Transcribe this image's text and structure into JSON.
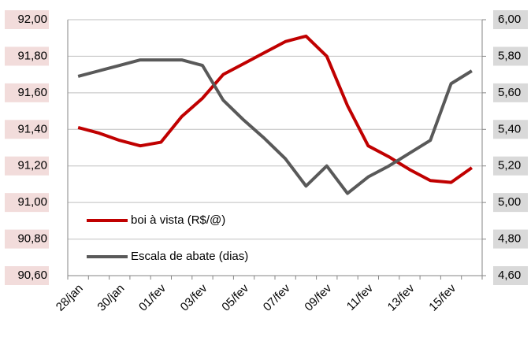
{
  "chart_data": {
    "type": "line",
    "categories": [
      "28/jan",
      null,
      "30/jan",
      null,
      "01/fev",
      null,
      "03/fev",
      null,
      "05/fev",
      null,
      "07/fev",
      null,
      "09/fev",
      null,
      "11/fev",
      null,
      "13/fev",
      null,
      "15/fev",
      null
    ],
    "series": [
      {
        "name": "boi à vista (R$/@)",
        "color": "#c00000",
        "values": [
          91.41,
          91.38,
          91.34,
          91.31,
          91.33,
          91.47,
          91.57,
          91.7,
          91.76,
          91.82,
          91.88,
          91.91,
          91.8,
          91.53,
          91.31,
          91.25,
          91.18,
          91.12,
          91.11,
          91.19
        ]
      },
      {
        "name": "Escala de abate (dias)",
        "color": "#595959",
        "axis": "y2",
        "values": [
          5.69,
          5.72,
          5.75,
          5.78,
          5.78,
          5.78,
          5.75,
          5.56,
          5.45,
          5.35,
          5.24,
          5.09,
          5.2,
          5.05,
          5.14,
          5.2,
          5.27,
          5.34,
          5.65,
          5.72
        ]
      }
    ],
    "ylim": [
      90.6,
      92.0
    ],
    "yticks": [
      {
        "value": 90.6,
        "label": "90,60"
      },
      {
        "value": 90.8,
        "label": "90,80"
      },
      {
        "value": 91.0,
        "label": "91,00"
      },
      {
        "value": 91.2,
        "label": "91,20"
      },
      {
        "value": 91.4,
        "label": "91,40"
      },
      {
        "value": 91.6,
        "label": "91,60"
      },
      {
        "value": 91.8,
        "label": "91,80"
      },
      {
        "value": 92.0,
        "label": "92,00"
      }
    ],
    "y2lim": [
      4.6,
      6.0
    ],
    "y2ticks": [
      {
        "value": 4.6,
        "label": "4,60"
      },
      {
        "value": 4.8,
        "label": "4,80"
      },
      {
        "value": 5.0,
        "label": "5,00"
      },
      {
        "value": 5.2,
        "label": "5,20"
      },
      {
        "value": 5.4,
        "label": "5,40"
      },
      {
        "value": 5.6,
        "label": "5,60"
      },
      {
        "value": 5.8,
        "label": "5,80"
      },
      {
        "value": 6.0,
        "label": "6,00"
      }
    ],
    "grid": true
  }
}
